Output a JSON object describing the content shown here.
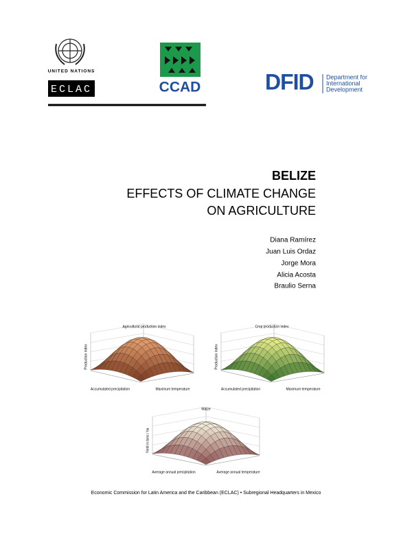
{
  "header": {
    "un_label": "UNITED NATIONS",
    "eclac": "ECLAC",
    "ccad": "CCAD",
    "dfid": "DFID",
    "dfid_name": [
      "Department for",
      "International",
      "Development"
    ]
  },
  "title": {
    "country": "BELIZE",
    "lines": [
      "EFFECTS OF CLIMATE CHANGE",
      "ON AGRICULTURE"
    ]
  },
  "authors": [
    "Diana Ramírez",
    "Juan Luis Ordaz",
    "Jorge Mora",
    "Alicia Acosta",
    "Braulio Serna"
  ],
  "figures": [
    {
      "title": "Agricultural production index",
      "z_label": "Production index",
      "x_label": "Accumulated precipitation",
      "y_label": "Maximum temperature"
    },
    {
      "title": "Crop production index",
      "z_label": "Production index",
      "x_label": "Accumulated precipitation",
      "y_label": "Maximum temperature"
    },
    {
      "title": "Maize",
      "z_label": "Yield in tons / ha",
      "x_label": "Average annual precipitation",
      "y_label": "Average annual temperature"
    }
  ],
  "footer": "Economic Commission for Latin America and the Caribbean (ECLAC) • Subregional Headquarters in Mexico"
}
